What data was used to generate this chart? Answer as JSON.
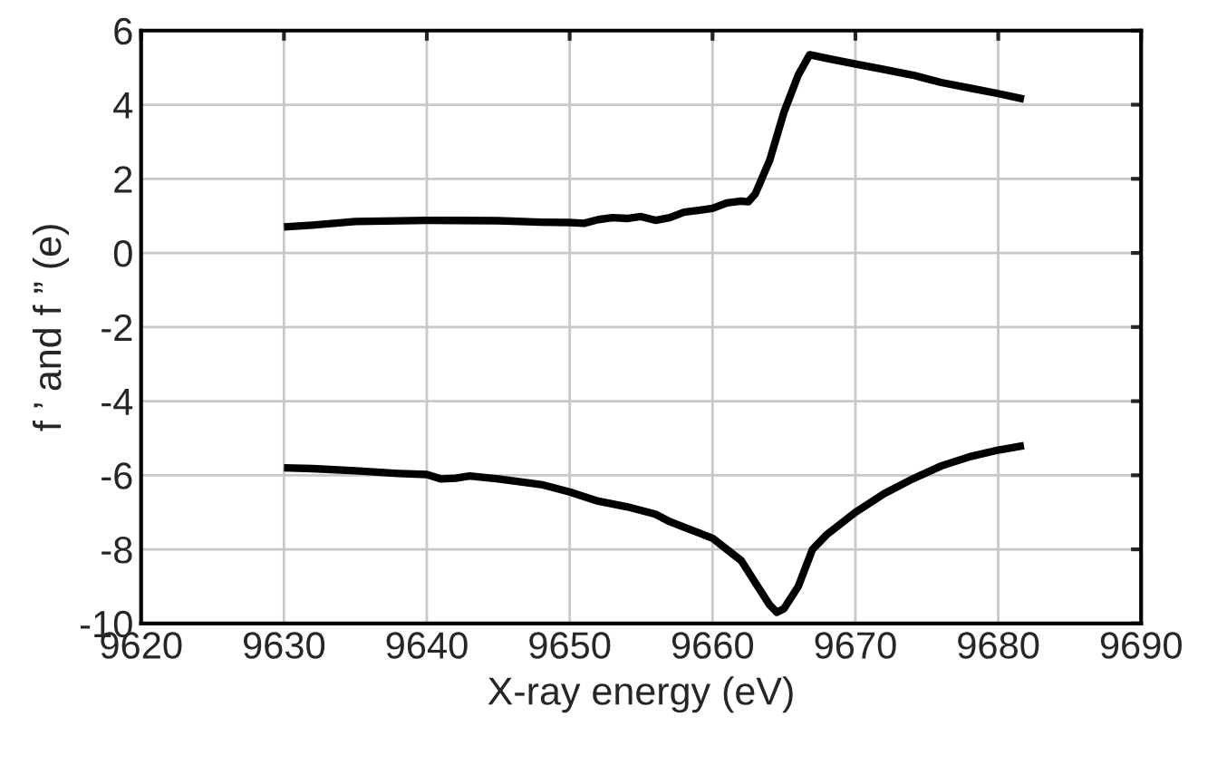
{
  "chart_data": {
    "type": "line",
    "xlabel": "X-ray energy (eV)",
    "ylabel": "f ’ and f ” (e)",
    "xlim": [
      9620,
      9690
    ],
    "xticks": [
      9620,
      9630,
      9640,
      9650,
      9660,
      9670,
      9680,
      9690
    ],
    "ylim": [
      -10,
      6
    ],
    "yticks": [
      -10,
      -8,
      -6,
      -4,
      -2,
      0,
      2,
      4,
      6
    ],
    "grid": true,
    "legend": false,
    "line_style": "solid",
    "marker": "none",
    "series": [
      {
        "color": "#000000",
        "x": [
          9630,
          9632,
          9635,
          9640,
          9645,
          9648,
          9650,
          9651,
          9652,
          9653,
          9654,
          9655,
          9656,
          9657,
          9658,
          9659,
          9660,
          9661,
          9662,
          9662.5,
          9663,
          9664,
          9665,
          9666,
          9666.8,
          9668,
          9670,
          9672,
          9674,
          9676,
          9678,
          9680,
          9681.8
        ],
        "values": [
          0.7,
          0.75,
          0.85,
          0.88,
          0.87,
          0.83,
          0.82,
          0.8,
          0.9,
          0.95,
          0.93,
          0.98,
          0.88,
          0.95,
          1.1,
          1.15,
          1.2,
          1.35,
          1.4,
          1.38,
          1.6,
          2.5,
          3.8,
          4.8,
          5.35,
          5.25,
          5.1,
          4.95,
          4.8,
          4.6,
          4.45,
          4.3,
          4.15
        ]
      },
      {
        "color": "#000000",
        "x": [
          9630,
          9632,
          9635,
          9638,
          9640,
          9641,
          9642,
          9643,
          9645,
          9648,
          9650,
          9652,
          9654,
          9656,
          9657,
          9659,
          9660,
          9661,
          9662,
          9663,
          9664,
          9664.5,
          9665,
          9666,
          9667,
          9668,
          9670,
          9672,
          9674,
          9676,
          9678,
          9680,
          9681.8
        ],
        "values": [
          -5.8,
          -5.82,
          -5.88,
          -5.95,
          -5.98,
          -6.1,
          -6.08,
          -6.02,
          -6.1,
          -6.25,
          -6.45,
          -6.7,
          -6.85,
          -7.05,
          -7.25,
          -7.55,
          -7.7,
          -8.0,
          -8.3,
          -8.9,
          -9.5,
          -9.7,
          -9.6,
          -9.0,
          -8.0,
          -7.6,
          -7.0,
          -6.5,
          -6.1,
          -5.75,
          -5.5,
          -5.32,
          -5.2
        ]
      }
    ]
  }
}
